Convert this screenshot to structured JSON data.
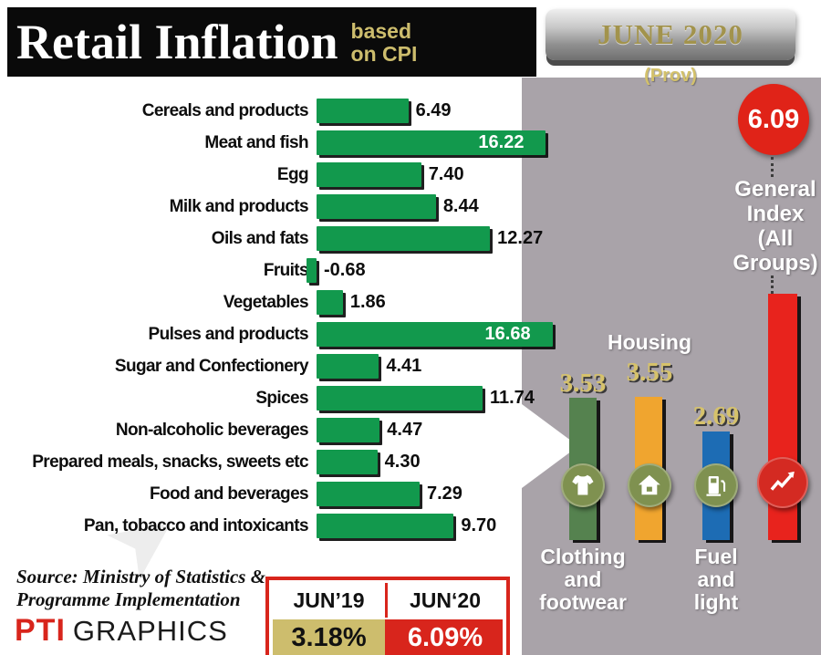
{
  "header": {
    "title": "Retail Inflation",
    "subtitle_line1": "based",
    "subtitle_line2": "on CPI",
    "date_badge": "JUNE 2020",
    "prov_note": "(Prov)"
  },
  "chart_data": [
    {
      "type": "bar",
      "orientation": "horizontal",
      "title": "Retail Inflation based on CPI",
      "categories": [
        "Cereals and products",
        "Meat and fish",
        "Egg",
        "Milk and products",
        "Oils and fats",
        "Fruits",
        "Vegetables",
        "Pulses and products",
        "Sugar and Confectionery",
        "Spices",
        "Non-alcoholic beverages",
        "Prepared meals, snacks, sweets etc",
        "Food and beverages",
        "Pan, tobacco and intoxicants"
      ],
      "values": [
        6.49,
        16.22,
        7.4,
        8.44,
        12.27,
        -0.68,
        1.86,
        16.68,
        4.41,
        11.74,
        4.47,
        4.3,
        7.29,
        9.7
      ],
      "bar_color": "#12994d",
      "xlim": [
        0,
        17
      ],
      "grid": false
    },
    {
      "type": "bar",
      "orientation": "vertical",
      "categories": [
        "Clothing and footwear",
        "Housing",
        "Fuel and light",
        "General Index (All Groups)"
      ],
      "values": [
        3.53,
        3.55,
        2.69,
        6.09
      ],
      "colors": [
        "#55824f",
        "#f0a52f",
        "#1d6cb4",
        "#e8231d"
      ],
      "icons": [
        "clothing-icon",
        "house-icon",
        "fuel-icon",
        "trend-icon"
      ],
      "icon_colors": [
        "#7f9150",
        "#7f9150",
        "#7f9150",
        "#d42a22"
      ],
      "ylim": [
        0,
        6.5
      ],
      "grid": false
    }
  ],
  "comparison": {
    "col1_header": "JUN’19",
    "col1_value": "3.18%",
    "col2_header": "JUN‘20",
    "col2_value": "6.09%"
  },
  "source": {
    "line1": "Source: Ministry of Statistics &",
    "line2": "Programme Implementation"
  },
  "credit": {
    "pti": "PTI",
    "graphics": "GRAPHICS"
  },
  "colors": {
    "khaki": "#d3c16b",
    "panel_gray": "#a9a3a9",
    "green": "#12994d",
    "red": "#d8251c",
    "blue": "#1d6cb4",
    "orange": "#f0a52f"
  }
}
